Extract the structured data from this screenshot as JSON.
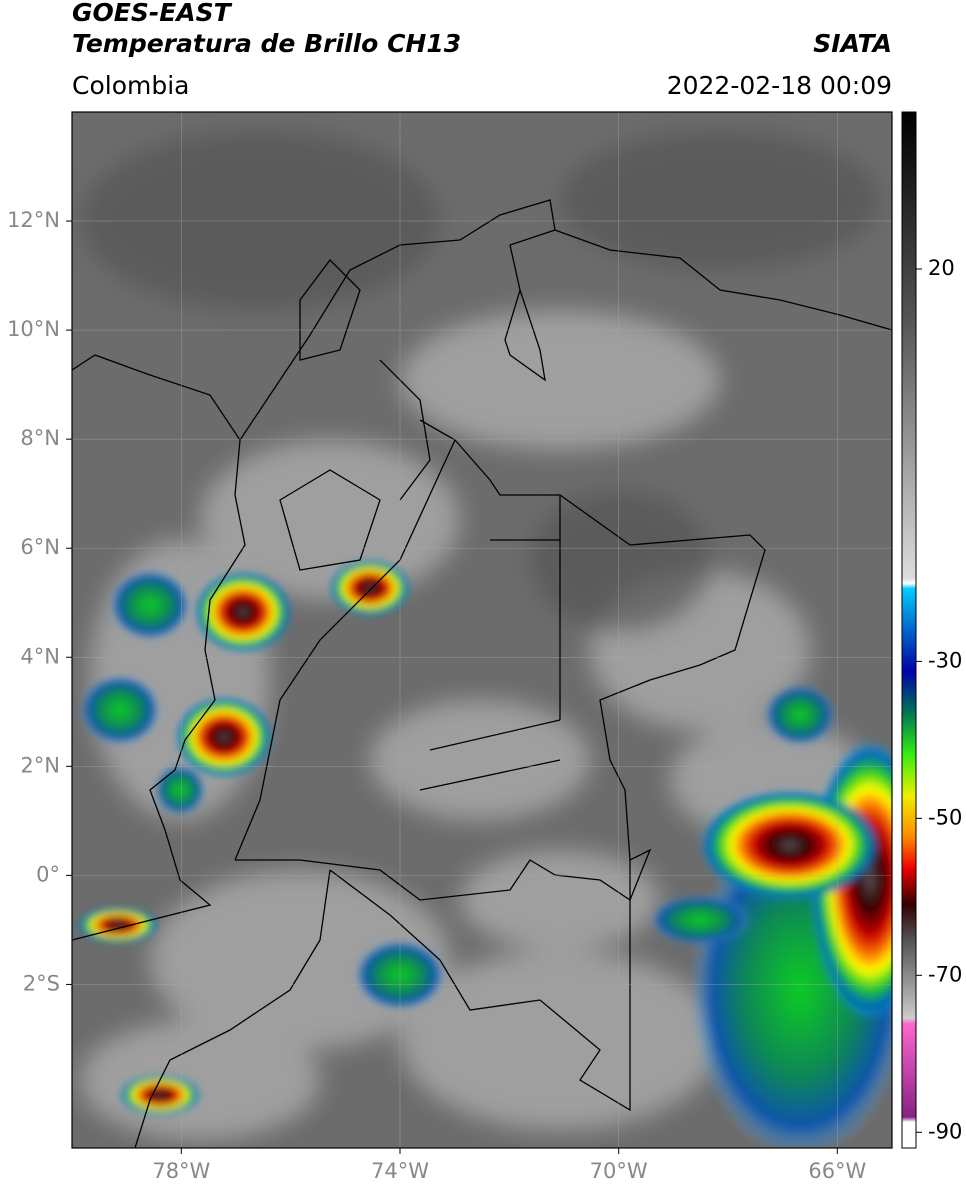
{
  "header": {
    "satellite": "GOES-EAST",
    "product": "Temperatura de Brillo CH13",
    "region": "Colombia",
    "source": "SIATA",
    "datetime": "2022-02-18 00:09"
  },
  "map": {
    "lon_range": [
      -80,
      -65
    ],
    "lat_range": [
      -5,
      14
    ],
    "lon_ticks": [
      {
        "value": -78,
        "label": "78°W"
      },
      {
        "value": -74,
        "label": "74°W"
      },
      {
        "value": -70,
        "label": "70°W"
      },
      {
        "value": -66,
        "label": "66°W"
      }
    ],
    "lat_ticks": [
      {
        "value": 12,
        "label": "12°N"
      },
      {
        "value": 10,
        "label": "10°N"
      },
      {
        "value": 8,
        "label": "8°N"
      },
      {
        "value": 6,
        "label": "6°N"
      },
      {
        "value": 4,
        "label": "4°N"
      },
      {
        "value": 2,
        "label": "2°N"
      },
      {
        "value": 0,
        "label": "0°"
      },
      {
        "value": -2,
        "label": "2°S"
      }
    ]
  },
  "colorbar": {
    "range": [
      -92,
      40
    ],
    "ticks": [
      20,
      -30,
      -50,
      -70,
      -90
    ]
  }
}
